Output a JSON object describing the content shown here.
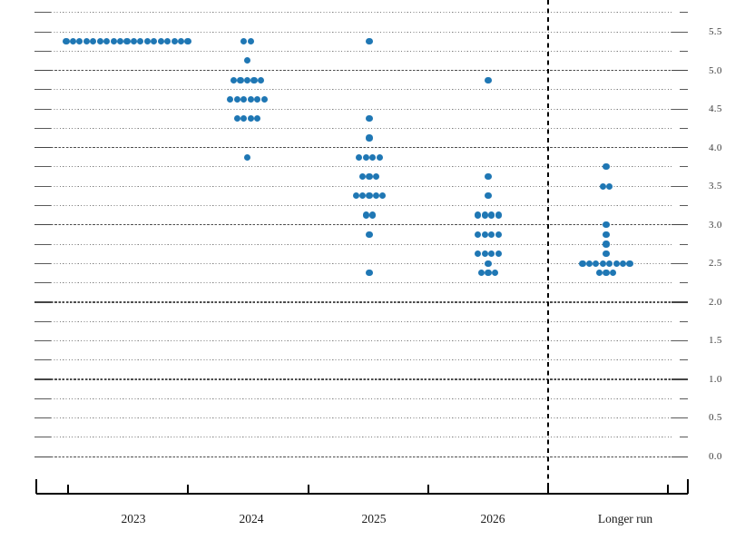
{
  "chart_data": {
    "type": "scatter",
    "subtype": "fomc-dot-plot",
    "title": "",
    "xlabel": "",
    "ylabel": "",
    "grid": "dotted lines every 0.25, denser dashed lines at integers",
    "legend": "none",
    "ylim": [
      0.0,
      5.75
    ],
    "grid_step": 0.25,
    "dot_color": "#1f77b4",
    "y_axis": {
      "side": "right",
      "label_step": 0.5,
      "tick_labels": [
        "5.5",
        "5.0",
        "4.5",
        "4.0",
        "3.5",
        "3.0",
        "2.5",
        "2.0",
        "1.5",
        "1.0",
        "0.5",
        "0.0"
      ],
      "tick_values": [
        5.5,
        5.0,
        4.5,
        4.0,
        3.5,
        3.0,
        2.5,
        2.0,
        1.5,
        1.0,
        0.5,
        0.0
      ]
    },
    "separator": {
      "before_category": "Longer run",
      "style": "dashed-vertical-line"
    },
    "categories": [
      {
        "label": "2023",
        "dots": [
          {
            "y": 5.375,
            "count": 19
          }
        ]
      },
      {
        "label": "2024",
        "dots": [
          {
            "y": 5.375,
            "count": 2
          },
          {
            "y": 5.125,
            "count": 1
          },
          {
            "y": 4.875,
            "count": 5
          },
          {
            "y": 4.625,
            "count": 6
          },
          {
            "y": 4.375,
            "count": 4
          },
          {
            "y": 3.875,
            "count": 1
          }
        ]
      },
      {
        "label": "2025",
        "dots": [
          {
            "y": 5.375,
            "count": 1
          },
          {
            "y": 4.375,
            "count": 1
          },
          {
            "y": 4.125,
            "count": 1
          },
          {
            "y": 3.875,
            "count": 4
          },
          {
            "y": 3.625,
            "count": 3
          },
          {
            "y": 3.375,
            "count": 5
          },
          {
            "y": 3.125,
            "count": 2
          },
          {
            "y": 2.875,
            "count": 1
          },
          {
            "y": 2.375,
            "count": 1
          }
        ]
      },
      {
        "label": "2026",
        "dots": [
          {
            "y": 4.875,
            "count": 1
          },
          {
            "y": 3.625,
            "count": 1
          },
          {
            "y": 3.375,
            "count": 1
          },
          {
            "y": 3.125,
            "count": 4
          },
          {
            "y": 2.875,
            "count": 4
          },
          {
            "y": 2.625,
            "count": 4
          },
          {
            "y": 2.5,
            "count": 1
          },
          {
            "y": 2.375,
            "count": 3
          }
        ]
      },
      {
        "label": "Longer run",
        "dots": [
          {
            "y": 3.75,
            "count": 1
          },
          {
            "y": 3.5,
            "count": 2
          },
          {
            "y": 3.0,
            "count": 1
          },
          {
            "y": 2.875,
            "count": 1
          },
          {
            "y": 2.75,
            "count": 1
          },
          {
            "y": 2.625,
            "count": 1
          },
          {
            "y": 2.5,
            "count": 8
          },
          {
            "y": 2.375,
            "count": 3
          }
        ]
      }
    ]
  }
}
